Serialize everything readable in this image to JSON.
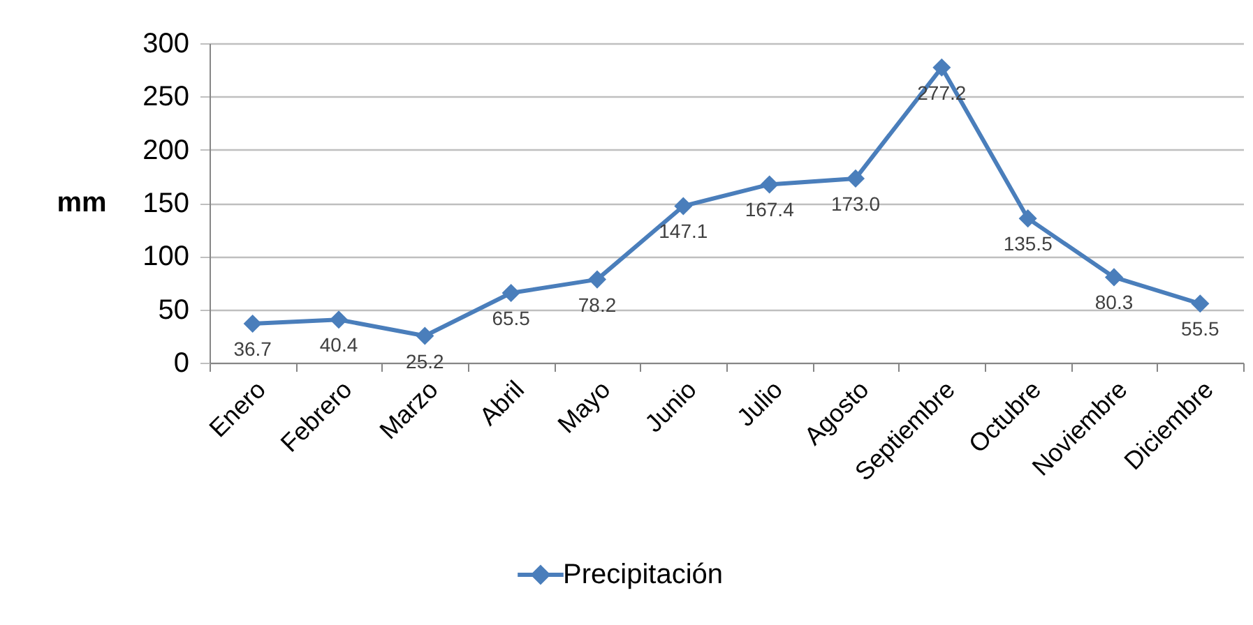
{
  "chart_data": {
    "type": "line",
    "ylabel": "mm",
    "categories": [
      "Enero",
      "Febrero",
      "Marzo",
      "Abril",
      "Mayo",
      "Junio",
      "Julio",
      "Agosto",
      "Septiembre",
      "Octubre",
      "Noviembre",
      "Diciembre"
    ],
    "series": [
      {
        "name": "Precipitación",
        "color": "#4a7ebb",
        "values": [
          36.7,
          40.4,
          25.2,
          65.5,
          78.2,
          147.1,
          167.4,
          173.0,
          277.2,
          135.5,
          80.3,
          55.5
        ],
        "value_labels": [
          "36.7",
          "40.4",
          "25.2",
          "65.5",
          "78.2",
          "147.1",
          "167.4",
          "173.0",
          "277.2",
          "135.5",
          "80.3",
          "55.5"
        ]
      }
    ],
    "ylim": [
      0,
      300
    ],
    "yticks": [
      0,
      50,
      100,
      150,
      200,
      250,
      300
    ],
    "grid": "y",
    "legend": "bottom",
    "marker": "diamond",
    "line_style": "solid"
  }
}
